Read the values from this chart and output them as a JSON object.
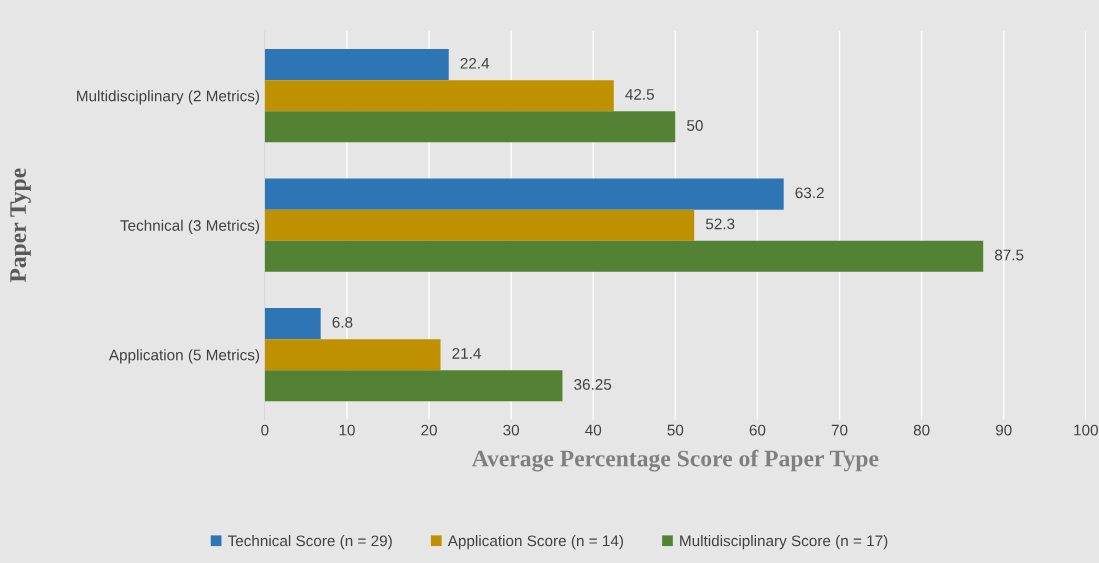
{
  "chart_data": {
    "type": "bar",
    "orientation": "horizontal",
    "xlabel": "Average Percentage Score of Paper Type",
    "ylabel": "Paper Type",
    "categories": [
      "Multidisciplinary (2 Metrics)",
      "Technical (3 Metrics)",
      "Application (5 Metrics)"
    ],
    "series": [
      {
        "name": "Technical Score (n = 29)",
        "color": "#2e75b6",
        "values": [
          22.4,
          63.2,
          6.8
        ]
      },
      {
        "name": "Application Score (n = 14)",
        "color": "#bf9000",
        "values": [
          42.5,
          52.3,
          21.4
        ]
      },
      {
        "name": "Multidisciplinary Score (n = 17)",
        "color": "#548235",
        "values": [
          50,
          87.5,
          36.25
        ]
      }
    ],
    "xlim": [
      0,
      100
    ],
    "xticks": [
      0,
      10,
      20,
      30,
      40,
      50,
      60,
      70,
      80,
      90,
      100
    ],
    "grid": "x",
    "legend": "bottom",
    "data_labels": true
  }
}
